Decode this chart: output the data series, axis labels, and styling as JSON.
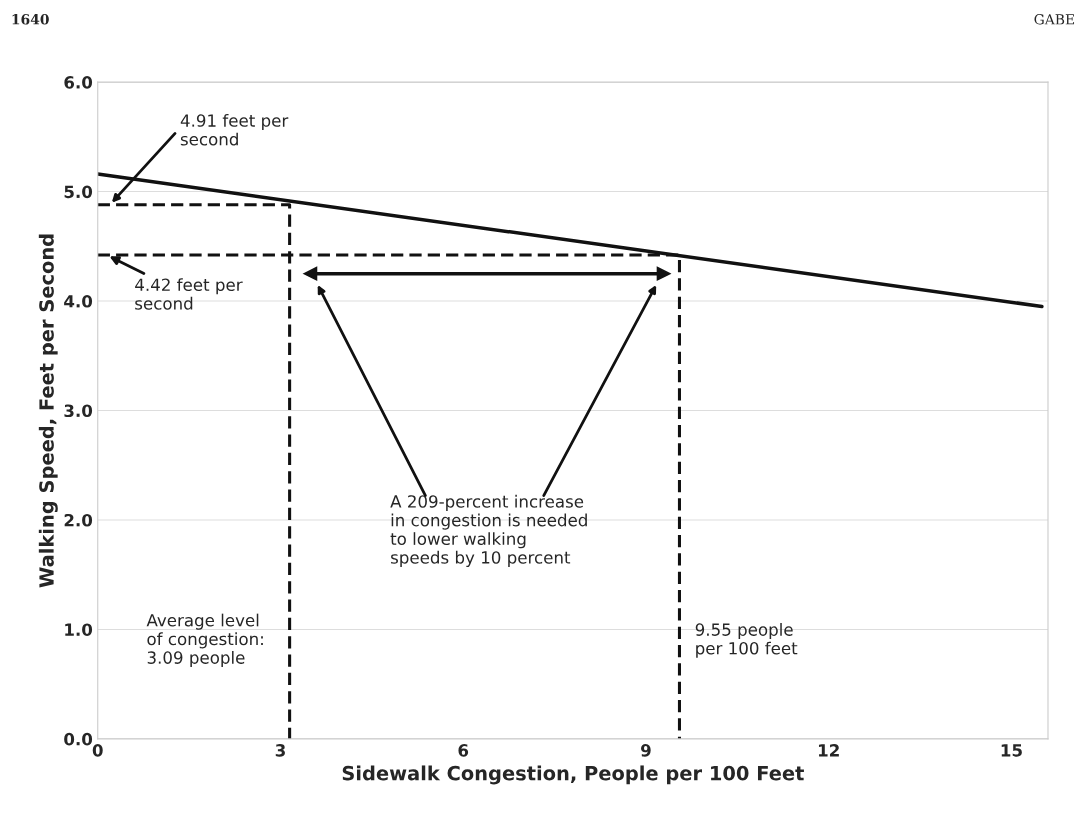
{
  "chart_data": {
    "type": "line",
    "xlabel": "Sidewalk Congestion, People per 100 Feet",
    "ylabel": "Walking Speed, Feet per Second",
    "xlim": [
      0,
      15.6
    ],
    "xticks": [
      0,
      3,
      6,
      9,
      12,
      15
    ],
    "ylim": [
      0,
      6
    ],
    "yticks": [
      {
        "value": 0,
        "label": "0.0"
      },
      {
        "value": 1,
        "label": "1.0"
      },
      {
        "value": 2,
        "label": "2.0"
      },
      {
        "value": 3,
        "label": "3.0"
      },
      {
        "value": 4,
        "label": "4.0"
      },
      {
        "value": 5,
        "label": "5.0"
      },
      {
        "value": 6,
        "label": "6.0"
      }
    ],
    "grid": "y",
    "legend": false,
    "series": [
      {
        "color": "#111111",
        "line_style": "solid",
        "x": [
          0,
          15.5
        ],
        "values": [
          5.16,
          3.95
        ]
      },
      {
        "color": "#111111",
        "line_style": "dashed",
        "x": [
          0,
          3.15,
          3.15
        ],
        "values": [
          4.88,
          4.88,
          0
        ]
      },
      {
        "color": "#111111",
        "line_style": "dashed",
        "x": [
          0,
          9.55,
          9.55
        ],
        "values": [
          4.42,
          4.42,
          0
        ]
      },
      {
        "marker": "triangle",
        "color": "#111111",
        "line_style": "solid",
        "x": [
          3.49,
          9.29
        ],
        "values": [
          4.25,
          4.25
        ]
      }
    ],
    "annotations": [
      "4.91 feet per\nsecond",
      {
        "text": "4.42 feet per\nsecond",
        "x": 0.15,
        "y": 4.42
      },
      "A 209-percent increase\nin congestion is needed\nto lower walking\nspeeds by 10 percent",
      "Average level\nof congestion:\n3.09 people",
      "9.55 people\nper 100 feet",
      "1640",
      "GABE"
    ]
  }
}
